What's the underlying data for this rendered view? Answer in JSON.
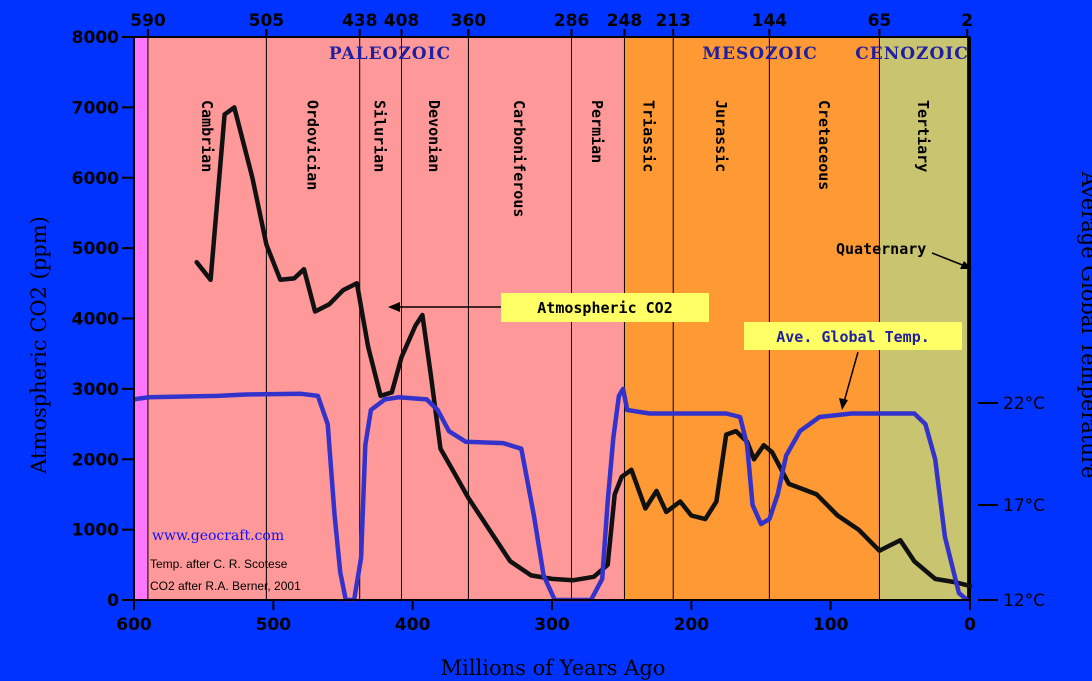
{
  "chart_data": {
    "type": "line",
    "x_axis": {
      "title": "Millions of Years Ago",
      "range": [
        600,
        0
      ],
      "ticks": [
        600,
        500,
        400,
        300,
        200,
        100,
        0
      ]
    },
    "top_axis_ticks": [
      590,
      505,
      438,
      408,
      360,
      286,
      248,
      213,
      144,
      65,
      2
    ],
    "y_left": {
      "title": "Atmospheric CO2 (ppm)",
      "range": [
        0,
        8000
      ],
      "ticks": [
        0,
        1000,
        2000,
        3000,
        4000,
        5000,
        6000,
        7000,
        8000
      ]
    },
    "y_right": {
      "title": "Average Global Temperature",
      "ticks": [
        {
          "label": "22°C",
          "co2_equiv": 2800
        },
        {
          "label": "17°C",
          "co2_equiv": 1350
        },
        {
          "label": "12°C",
          "co2_equiv": 0
        }
      ]
    },
    "eras": [
      {
        "label": "PALEOZOIC",
        "from": 590,
        "to": 248,
        "color": "#ff9999"
      },
      {
        "label": "MESOZOIC",
        "from": 248,
        "to": 65,
        "color": "#ff9933"
      },
      {
        "label": "CENOZOIC",
        "from": 65,
        "to": 2,
        "color": "#c8c470"
      }
    ],
    "precambrian": {
      "from": 600,
      "to": 590,
      "color": "#ff77ff"
    },
    "period_boundaries": [
      505,
      438,
      408,
      360,
      286,
      248,
      213,
      144,
      65
    ],
    "periods": [
      {
        "label": "Cambrian",
        "x": 547
      },
      {
        "label": "Ordovician",
        "x": 471
      },
      {
        "label": "Silurian",
        "x": 423
      },
      {
        "label": "Devonian",
        "x": 384
      },
      {
        "label": "Carboniferous",
        "x": 323
      },
      {
        "label": "Permian",
        "x": 267
      },
      {
        "label": "Triassic",
        "x": 230
      },
      {
        "label": "Jurassic",
        "x": 178
      },
      {
        "label": "Cretaceous",
        "x": 104
      },
      {
        "label": "Tertiary",
        "x": 33
      }
    ],
    "quaternary_label": "Quaternary",
    "series": [
      {
        "name": "Atmospheric CO2",
        "color": "#111111",
        "points": [
          [
            555,
            4800
          ],
          [
            545,
            4550
          ],
          [
            535,
            6900
          ],
          [
            528,
            7000
          ],
          [
            515,
            6000
          ],
          [
            505,
            5050
          ],
          [
            495,
            4550
          ],
          [
            485,
            4570
          ],
          [
            478,
            4700
          ],
          [
            470,
            4100
          ],
          [
            460,
            4200
          ],
          [
            450,
            4400
          ],
          [
            440,
            4500
          ],
          [
            432,
            3600
          ],
          [
            423,
            2900
          ],
          [
            415,
            2950
          ],
          [
            408,
            3450
          ],
          [
            398,
            3900
          ],
          [
            393,
            4050
          ],
          [
            387,
            3200
          ],
          [
            380,
            2150
          ],
          [
            370,
            1800
          ],
          [
            360,
            1450
          ],
          [
            345,
            1000
          ],
          [
            330,
            550
          ],
          [
            315,
            350
          ],
          [
            300,
            300
          ],
          [
            285,
            280
          ],
          [
            270,
            330
          ],
          [
            260,
            500
          ],
          [
            255,
            1500
          ],
          [
            250,
            1750
          ],
          [
            243,
            1850
          ],
          [
            233,
            1300
          ],
          [
            225,
            1550
          ],
          [
            218,
            1250
          ],
          [
            208,
            1400
          ],
          [
            200,
            1200
          ],
          [
            190,
            1150
          ],
          [
            182,
            1400
          ],
          [
            175,
            2350
          ],
          [
            168,
            2400
          ],
          [
            160,
            2250
          ],
          [
            155,
            2000
          ],
          [
            148,
            2200
          ],
          [
            142,
            2100
          ],
          [
            130,
            1650
          ],
          [
            110,
            1500
          ],
          [
            95,
            1200
          ],
          [
            80,
            1000
          ],
          [
            65,
            700
          ],
          [
            50,
            850
          ],
          [
            40,
            550
          ],
          [
            25,
            300
          ],
          [
            10,
            250
          ],
          [
            0,
            200
          ]
        ]
      },
      {
        "name": "Ave. Global Temp.",
        "color": "#3333cc",
        "points": [
          [
            600,
            2850
          ],
          [
            590,
            2880
          ],
          [
            540,
            2900
          ],
          [
            520,
            2920
          ],
          [
            480,
            2930
          ],
          [
            468,
            2900
          ],
          [
            461,
            2500
          ],
          [
            456,
            1200
          ],
          [
            452,
            400
          ],
          [
            448,
            0
          ],
          [
            442,
            0
          ],
          [
            437,
            600
          ],
          [
            434,
            2200
          ],
          [
            430,
            2700
          ],
          [
            420,
            2850
          ],
          [
            410,
            2880
          ],
          [
            390,
            2850
          ],
          [
            382,
            2700
          ],
          [
            374,
            2400
          ],
          [
            362,
            2250
          ],
          [
            335,
            2230
          ],
          [
            322,
            2150
          ],
          [
            313,
            1200
          ],
          [
            306,
            350
          ],
          [
            298,
            0
          ],
          [
            272,
            0
          ],
          [
            264,
            300
          ],
          [
            260,
            1400
          ],
          [
            256,
            2300
          ],
          [
            252,
            2900
          ],
          [
            249,
            3000
          ],
          [
            246,
            2700
          ],
          [
            230,
            2650
          ],
          [
            175,
            2650
          ],
          [
            165,
            2600
          ],
          [
            160,
            2200
          ],
          [
            156,
            1350
          ],
          [
            150,
            1080
          ],
          [
            144,
            1150
          ],
          [
            138,
            1500
          ],
          [
            132,
            2050
          ],
          [
            122,
            2400
          ],
          [
            108,
            2600
          ],
          [
            85,
            2650
          ],
          [
            40,
            2650
          ],
          [
            32,
            2500
          ],
          [
            25,
            2000
          ],
          [
            18,
            900
          ],
          [
            8,
            100
          ],
          [
            2,
            0
          ]
        ]
      }
    ],
    "annotations": [
      {
        "text": "Atmospheric CO2",
        "style": "callout"
      },
      {
        "text": "Ave. Global Temp.",
        "style": "callout"
      },
      {
        "text": "www.geocraft.com",
        "style": "url"
      },
      {
        "text": "Temp. after C. R. Scotese",
        "style": "note"
      },
      {
        "text": "CO2 after R.A. Berner, 2001",
        "style": "note"
      }
    ]
  }
}
